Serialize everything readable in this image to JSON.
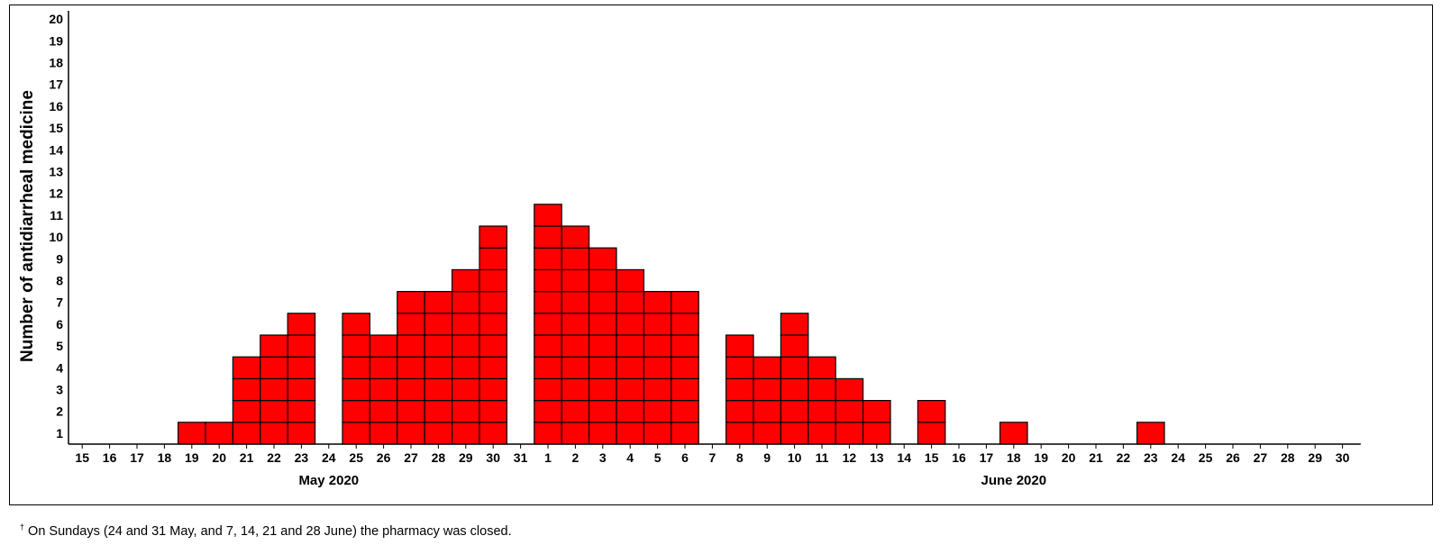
{
  "chart_data": {
    "type": "bar",
    "ylabel": "Number of antidiarrheal medicine",
    "xlabel": "",
    "ylim": [
      0,
      20
    ],
    "y_ticks": [
      "1",
      "2",
      "3",
      "4",
      "5",
      "6",
      "7",
      "8",
      "9",
      "10",
      "11",
      "12",
      "13",
      "14",
      "15",
      "16",
      "17",
      "18",
      "19",
      "20"
    ],
    "categories": [
      "15",
      "16",
      "17",
      "18",
      "19",
      "20",
      "21",
      "22",
      "23",
      "24",
      "25",
      "26",
      "27",
      "28",
      "29",
      "30",
      "31",
      "1",
      "2",
      "3",
      "4",
      "5",
      "6",
      "7",
      "8",
      "9",
      "10",
      "11",
      "12",
      "13",
      "14",
      "15",
      "16",
      "17",
      "18",
      "19",
      "20",
      "21",
      "22",
      "23",
      "24",
      "25",
      "26",
      "27",
      "28",
      "29",
      "30"
    ],
    "values": [
      0,
      0,
      0,
      0,
      1,
      1,
      4,
      5,
      6,
      0,
      6,
      5,
      7,
      7,
      8,
      10,
      0,
      11,
      10,
      9,
      8,
      7,
      7,
      0,
      5,
      4,
      6,
      4,
      3,
      2,
      0,
      2,
      0,
      0,
      1,
      0,
      0,
      0,
      0,
      1,
      0,
      0,
      0,
      0,
      0,
      0,
      0
    ],
    "month_labels": [
      {
        "label": "May 2020",
        "center_index": 9
      },
      {
        "label": "June 2020",
        "center_index": 34
      }
    ],
    "bar_color": "#ff0000",
    "grid": false
  },
  "footnote": {
    "mark": "†",
    "text": " On Sundays (24 and 31 May, and 7, 14, 21 and 28 June) the pharmacy was closed."
  }
}
